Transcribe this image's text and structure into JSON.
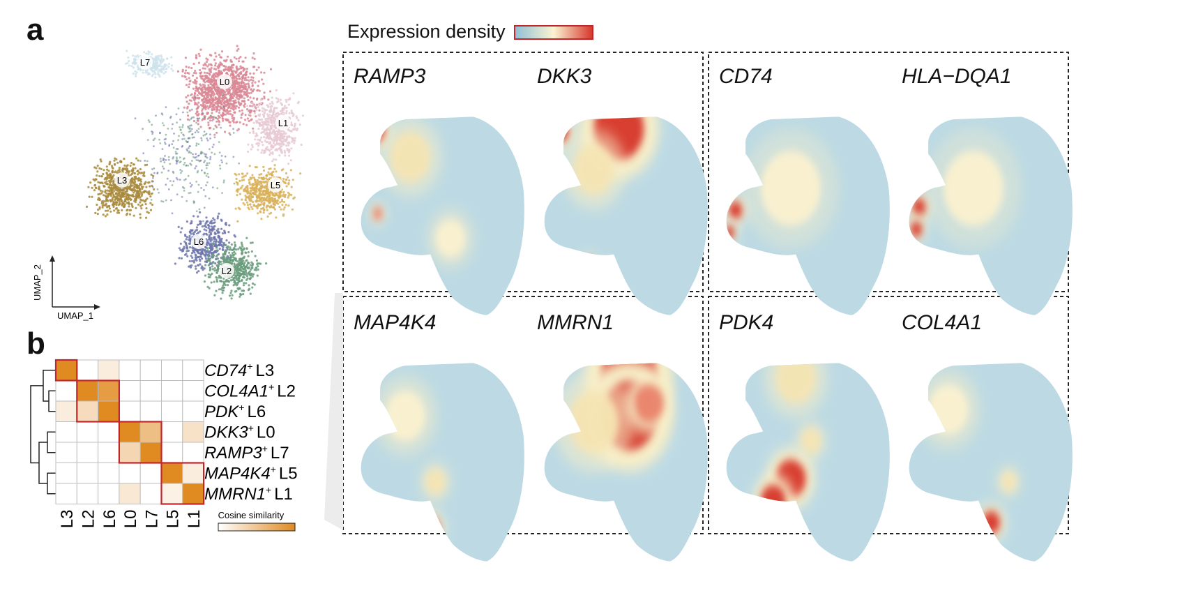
{
  "panel_a": {
    "label": "a",
    "axis_x": "UMAP_1",
    "axis_y": "UMAP_2",
    "clusters": [
      {
        "id": "L7",
        "color": "#cfe3ec"
      },
      {
        "id": "L0",
        "color": "#d98895"
      },
      {
        "id": "L1",
        "color": "#e8c9d3"
      },
      {
        "id": "L3",
        "color": "#a88a3c"
      },
      {
        "id": "L5",
        "color": "#d9b25c"
      },
      {
        "id": "L6",
        "color": "#6f77ad"
      },
      {
        "id": "L2",
        "color": "#6a9c7c"
      }
    ]
  },
  "density_legend": {
    "title": "Expression density",
    "colors": [
      "#8fbfd6",
      "#fbf4d2",
      "#d6362c"
    ]
  },
  "feature_plots": [
    {
      "gene": "RAMP3"
    },
    {
      "gene": "DKK3"
    },
    {
      "gene": "CD74"
    },
    {
      "gene": "HLA−DQA1"
    },
    {
      "gene": "MAP4K4"
    },
    {
      "gene": "MMRN1"
    },
    {
      "gene": "PDK4"
    },
    {
      "gene": "COL4A1"
    }
  ],
  "panel_b": {
    "label": "b",
    "legend_title": "Cosine similarity",
    "legend_colors": [
      "#ffffff",
      "#e08a22"
    ]
  },
  "chart_data": {
    "type": "heatmap",
    "title": "",
    "columns": [
      "L3",
      "L2",
      "L6",
      "L0",
      "L7",
      "L5",
      "L1"
    ],
    "rows": [
      {
        "gene": "CD74",
        "sup": "+",
        "cluster": "L3"
      },
      {
        "gene": "COL4A1",
        "sup": "+",
        "cluster": "L2"
      },
      {
        "gene": "PDK",
        "sup": "+",
        "cluster": "L6"
      },
      {
        "gene": "DKK3",
        "sup": "+",
        "cluster": "L0"
      },
      {
        "gene": "RAMP3",
        "sup": "+",
        "cluster": "L7"
      },
      {
        "gene": "MAP4K4",
        "sup": "+",
        "cluster": "L5"
      },
      {
        "gene": "MMRN1",
        "sup": "+",
        "cluster": "L1"
      }
    ],
    "values": [
      [
        1.0,
        0.0,
        0.15,
        0.0,
        0.0,
        0.0,
        0.0
      ],
      [
        0.0,
        1.0,
        0.85,
        0.0,
        0.0,
        0.0,
        0.0
      ],
      [
        0.15,
        0.3,
        1.0,
        0.0,
        0.0,
        0.0,
        0.0
      ],
      [
        0.0,
        0.0,
        0.0,
        1.0,
        0.55,
        0.0,
        0.25
      ],
      [
        0.0,
        0.0,
        0.0,
        0.35,
        1.0,
        0.0,
        0.0
      ],
      [
        0.0,
        0.0,
        0.0,
        0.0,
        0.0,
        1.0,
        0.15
      ],
      [
        0.0,
        0.0,
        0.0,
        0.2,
        0.0,
        0.1,
        1.0
      ]
    ],
    "value_range": [
      0,
      1
    ],
    "highlight_blocks": [
      {
        "cols": [
          "L3"
        ],
        "rows": [
          "L3"
        ]
      },
      {
        "cols": [
          "L2",
          "L6"
        ],
        "rows": [
          "L2",
          "L6"
        ]
      },
      {
        "cols": [
          "L0",
          "L7"
        ],
        "rows": [
          "L0",
          "L7"
        ]
      },
      {
        "cols": [
          "L5",
          "L1"
        ],
        "rows": [
          "L5",
          "L1"
        ]
      }
    ]
  }
}
